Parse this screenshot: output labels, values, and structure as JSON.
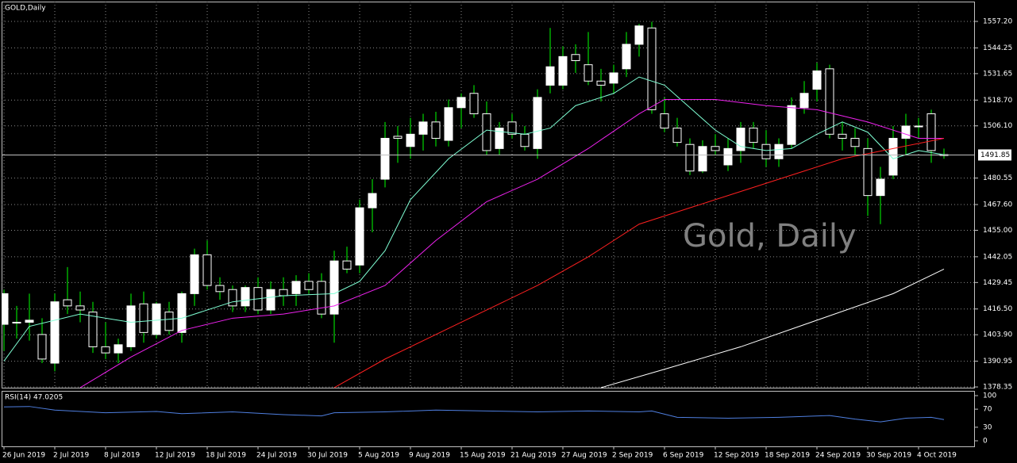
{
  "chart_data": [
    {
      "type": "candlestick",
      "title": "GOLD,Daily",
      "watermark": "Gold, Daily",
      "categories": [
        "26 Jun 2019",
        null,
        null,
        null,
        "2 Jul 2019",
        null,
        null,
        null,
        "8 Jul 2019",
        null,
        null,
        null,
        "12 Jul 2019",
        null,
        null,
        null,
        "18 Jul 2019",
        null,
        null,
        null,
        "24 Jul 2019",
        null,
        null,
        null,
        "30 Jul 2019",
        null,
        null,
        null,
        "5 Aug 2019",
        null,
        null,
        null,
        "9 Aug 2019",
        null,
        null,
        null,
        "15 Aug 2019",
        null,
        null,
        null,
        "21 Aug 2019",
        null,
        null,
        null,
        "27 Aug 2019",
        null,
        null,
        null,
        "2 Sep 2019",
        null,
        null,
        null,
        "6 Sep 2019",
        null,
        null,
        null,
        "12 Sep 2019",
        null,
        null,
        null,
        "18 Sep 2019",
        null,
        null,
        null,
        "24 Sep 2019",
        null,
        null,
        null,
        "30 Sep 2019",
        null,
        null,
        null,
        "4 Oct 2019",
        null,
        null
      ],
      "open": [
        1409,
        1410,
        1410,
        1404,
        1390,
        1421,
        1418,
        1415,
        1398,
        1395,
        1398,
        1419,
        1404,
        1415,
        1405,
        1424,
        1443,
        1428,
        1426,
        1418,
        1427,
        1416,
        1426,
        1424,
        1430,
        1430,
        1414,
        1440,
        1438,
        1466,
        1480,
        1501,
        1496,
        1502,
        1508,
        1499,
        1515,
        1522,
        1512,
        1495,
        1508,
        1502,
        1495,
        1526,
        1526,
        1541,
        1536,
        1528,
        1527,
        1534,
        1546,
        1554,
        1512,
        1505,
        1497,
        1484,
        1496,
        1487,
        1494,
        1505,
        1497,
        1490,
        1497,
        1515,
        1524,
        1534,
        1502,
        1500,
        1495,
        1472,
        1482,
        1500,
        1506,
        1512,
        1492
      ],
      "high": [
        1426,
        1418,
        1424,
        1412,
        1424,
        1437,
        1425,
        1420,
        1410,
        1402,
        1424,
        1425,
        1420,
        1420,
        1425,
        1446,
        1450,
        1432,
        1428,
        1428,
        1432,
        1430,
        1432,
        1433,
        1434,
        1434,
        1445,
        1447,
        1470,
        1480,
        1508,
        1506,
        1510,
        1512,
        1513,
        1519,
        1522,
        1526,
        1518,
        1508,
        1512,
        1506,
        1524,
        1554,
        1545,
        1546,
        1552,
        1534,
        1536,
        1552,
        1556,
        1557,
        1520,
        1510,
        1500,
        1499,
        1502,
        1500,
        1508,
        1508,
        1504,
        1500,
        1520,
        1528,
        1537,
        1536,
        1508,
        1505,
        1500,
        1486,
        1506,
        1512,
        1510,
        1514,
        1495
      ],
      "low": [
        1396,
        1402,
        1401,
        1390,
        1386,
        1414,
        1410,
        1395,
        1392,
        1390,
        1396,
        1400,
        1402,
        1404,
        1400,
        1418,
        1426,
        1421,
        1415,
        1415,
        1414,
        1414,
        1418,
        1418,
        1424,
        1412,
        1400,
        1434,
        1434,
        1454,
        1476,
        1488,
        1490,
        1494,
        1496,
        1496,
        1505,
        1510,
        1492,
        1492,
        1500,
        1494,
        1490,
        1522,
        1524,
        1532,
        1526,
        1518,
        1522,
        1530,
        1540,
        1512,
        1503,
        1496,
        1482,
        1483,
        1492,
        1484,
        1488,
        1495,
        1486,
        1486,
        1495,
        1512,
        1518,
        1500,
        1494,
        1492,
        1462,
        1458,
        1480,
        1492,
        1500,
        1488,
        1490
      ],
      "close": [
        1424,
        1410,
        1411,
        1392,
        1420,
        1418,
        1416,
        1398,
        1395,
        1399,
        1418,
        1405,
        1419,
        1406,
        1424,
        1443,
        1428,
        1425,
        1418,
        1427,
        1416,
        1426,
        1423,
        1430,
        1426,
        1414,
        1440,
        1436,
        1466,
        1473,
        1500,
        1500,
        1502,
        1508,
        1500,
        1515,
        1520,
        1512,
        1494,
        1505,
        1502,
        1496,
        1520,
        1535,
        1540,
        1538,
        1528,
        1526,
        1532,
        1546,
        1555,
        1514,
        1505,
        1498,
        1484,
        1496,
        1494,
        1495,
        1505,
        1498,
        1490,
        1497,
        1516,
        1522,
        1533,
        1502,
        1500,
        1496,
        1472,
        1480,
        1500,
        1506,
        1506,
        1494,
        1492
      ],
      "up_color": "#ffffff",
      "down_color": "#000000",
      "wick_color": "#00ff00",
      "grid": true,
      "ylim": [
        1377.6,
        1566.9
      ],
      "yticks": [
        {
          "value": 1557.2,
          "label": "1557.20"
        },
        1544.25,
        1531.65,
        {
          "value": 1518.7,
          "label": "1518.70"
        },
        {
          "value": 1506.1,
          "label": "1506.10"
        },
        1480.55,
        {
          "value": 1467.6,
          "label": "1467.60"
        },
        {
          "value": 1455,
          "label": "1455.00"
        },
        1442.05,
        1429.45,
        {
          "value": 1416.5,
          "label": "1416.50"
        },
        {
          "value": 1403.9,
          "label": "1403.90"
        },
        1390.95,
        1378.35
      ],
      "price_line": {
        "value": 1491.85,
        "label": "1491.85"
      },
      "series": [
        {
          "color": "#7fffd4",
          "x": [
            0,
            2,
            6,
            10,
            14,
            18,
            22,
            26,
            28,
            30,
            32,
            35,
            38,
            41,
            43,
            45,
            48,
            50,
            52,
            54,
            56,
            58,
            60,
            62,
            64,
            66,
            68,
            70,
            72,
            74
          ],
          "values": [
            1391,
            1408,
            1414,
            1410,
            1412,
            1420,
            1423,
            1424,
            1430,
            1445,
            1470,
            1490,
            1504,
            1502,
            1505,
            1516,
            1522,
            1530,
            1526,
            1515,
            1504,
            1496,
            1494,
            1495,
            1502,
            1508,
            1503,
            1490,
            1494,
            1492
          ]
        },
        {
          "color": "#ee22ee",
          "x": [
            6,
            10,
            14,
            18,
            22,
            26,
            30,
            34,
            38,
            42,
            46,
            50,
            52,
            56,
            60,
            64,
            68,
            72,
            74
          ],
          "values": [
            1378,
            1393,
            1406,
            1412,
            1414,
            1418,
            1428,
            1450,
            1469,
            1480,
            1495,
            1512,
            1519,
            1519,
            1516,
            1514,
            1508,
            1500,
            1500
          ]
        },
        {
          "color": "#ff2020",
          "x": [
            26,
            30,
            36,
            42,
            46,
            50,
            54,
            58,
            62,
            66,
            70,
            74
          ],
          "values": [
            1378,
            1392,
            1410,
            1428,
            1442,
            1458,
            1466,
            1474,
            1482,
            1490,
            1495,
            1500
          ]
        },
        {
          "color": "#ffffff",
          "x": [
            47,
            52,
            58,
            64,
            70,
            74
          ],
          "values": [
            1378,
            1387,
            1398,
            1411,
            1424,
            1436
          ]
        }
      ]
    },
    {
      "type": "line",
      "title": "RSI(14) 47.0205",
      "series": [
        {
          "color": "#4f7fe0",
          "x": [
            0,
            2,
            4,
            8,
            12,
            14,
            18,
            22,
            25,
            26,
            30,
            34,
            38,
            42,
            46,
            50,
            51,
            53,
            57,
            61,
            65,
            67,
            69,
            71,
            73,
            74
          ],
          "values": [
            75,
            76,
            68,
            62,
            65,
            60,
            64,
            58,
            55,
            62,
            64,
            68,
            66,
            64,
            66,
            64,
            66,
            52,
            50,
            52,
            56,
            48,
            42,
            50,
            52,
            47
          ]
        }
      ],
      "ylim": [
        -12.3,
        108.8
      ],
      "yticks": [
        100,
        70,
        30,
        0
      ]
    }
  ]
}
